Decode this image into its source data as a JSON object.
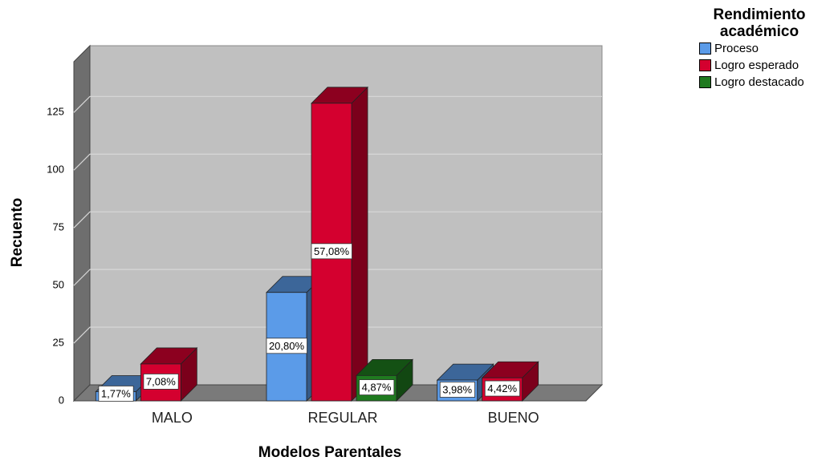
{
  "chart_data": {
    "type": "bar3d",
    "xlabel": "Modelos Parentales",
    "ylabel": "Recuento",
    "legend_title": "Rendimiento académico",
    "legend": "right",
    "categories": [
      "MALO",
      "REGULAR",
      "BUENO"
    ],
    "series": [
      {
        "name": "Proceso",
        "color": "#5b9be8",
        "values": [
          4,
          47,
          9
        ],
        "value_labels": [
          "1,77%",
          "20,80%",
          "3,98%"
        ]
      },
      {
        "name": "Logro esperado",
        "color": "#d4002f",
        "values": [
          16,
          129,
          10
        ],
        "value_labels": [
          "7,08%",
          "57,08%",
          "4,42%"
        ]
      },
      {
        "name": "Logro destacado",
        "color": "#1f7a1f",
        "values": [
          null,
          11,
          null
        ],
        "value_labels": [
          null,
          "4,87%",
          null
        ]
      }
    ],
    "ylim": [
      0,
      147
    ],
    "yticks": [
      0,
      25,
      50,
      75,
      100,
      125
    ],
    "grid": true
  }
}
